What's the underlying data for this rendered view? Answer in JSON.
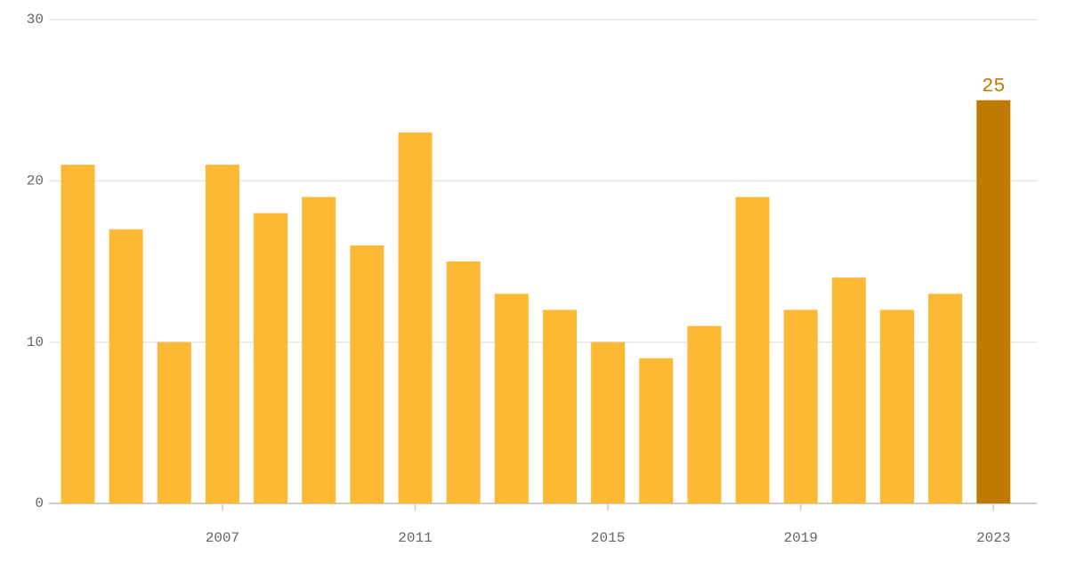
{
  "chart_data": {
    "type": "bar",
    "x": [
      2004,
      2005,
      2006,
      2007,
      2008,
      2009,
      2010,
      2011,
      2012,
      2013,
      2014,
      2015,
      2016,
      2017,
      2018,
      2019,
      2020,
      2021,
      2022,
      2023
    ],
    "values": [
      21,
      17,
      10,
      21,
      18,
      19,
      16,
      23,
      15,
      13,
      12,
      10,
      9,
      11,
      19,
      12,
      14,
      12,
      13,
      25
    ],
    "colors": [
      "#fdb933",
      "#fdb933",
      "#fdb933",
      "#fdb933",
      "#fdb933",
      "#fdb933",
      "#fdb933",
      "#fdb933",
      "#fdb933",
      "#fdb933",
      "#fdb933",
      "#fdb933",
      "#fdb933",
      "#fdb933",
      "#fdb933",
      "#fdb933",
      "#fdb933",
      "#fdb933",
      "#fdb933",
      "#c17a00"
    ],
    "labeled": [
      19
    ],
    "xlim": [
      2003.4,
      2023.9
    ],
    "xticks": [
      2007,
      2011,
      2015,
      2019,
      2023
    ],
    "ylim": [
      0,
      30
    ],
    "yticks": [
      0,
      10,
      20,
      30
    ],
    "grid": true
  }
}
